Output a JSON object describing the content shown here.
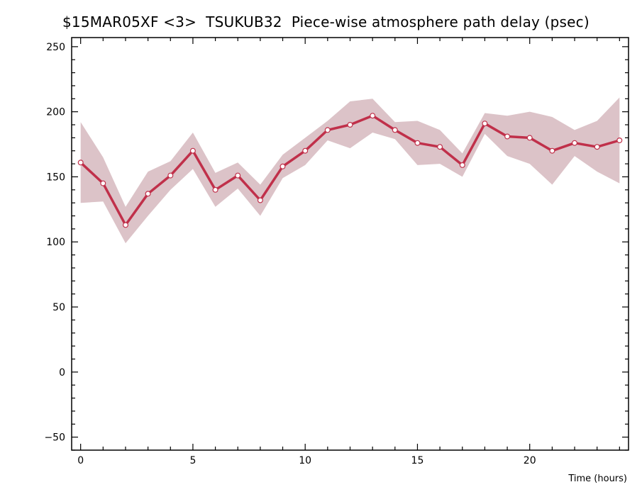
{
  "chart_data": {
    "type": "line",
    "title": "$15MAR05XF <3>  TSUKUB32  Piece-wise atmosphere path delay (psec)",
    "xlabel": "Time (hours)",
    "ylabel": "",
    "xlim": [
      -0.4,
      24.4
    ],
    "ylim": [
      -60,
      257
    ],
    "xticks": [
      0,
      5,
      10,
      15,
      20
    ],
    "yticks": [
      -50,
      0,
      50,
      100,
      150,
      200,
      250
    ],
    "grid": false,
    "colors": {
      "line": "#c0304a",
      "band": "#dcc3c8",
      "marker_fill": "#ffffff"
    },
    "series": [
      {
        "x": [
          0,
          1,
          2,
          3,
          4,
          5,
          6,
          7,
          8,
          9,
          10,
          11,
          12,
          13,
          14,
          15,
          16,
          17,
          18,
          19,
          20,
          21,
          22,
          23,
          24
        ],
        "values": [
          161,
          145,
          113,
          137,
          151,
          170,
          140,
          151,
          132,
          158,
          170,
          186,
          190,
          197,
          186,
          176,
          173,
          159,
          191,
          181,
          180,
          170,
          176,
          173,
          178
        ],
        "upper": [
          192,
          165,
          127,
          154,
          162,
          184,
          153,
          161,
          144,
          167,
          180,
          193,
          208,
          210,
          192,
          193,
          186,
          168,
          199,
          197,
          200,
          196,
          186,
          193,
          211
        ],
        "lower": [
          130,
          131,
          99,
          120,
          140,
          156,
          127,
          141,
          120,
          149,
          159,
          178,
          172,
          184,
          179,
          159,
          160,
          150,
          183,
          166,
          160,
          144,
          166,
          154,
          145
        ]
      }
    ]
  }
}
